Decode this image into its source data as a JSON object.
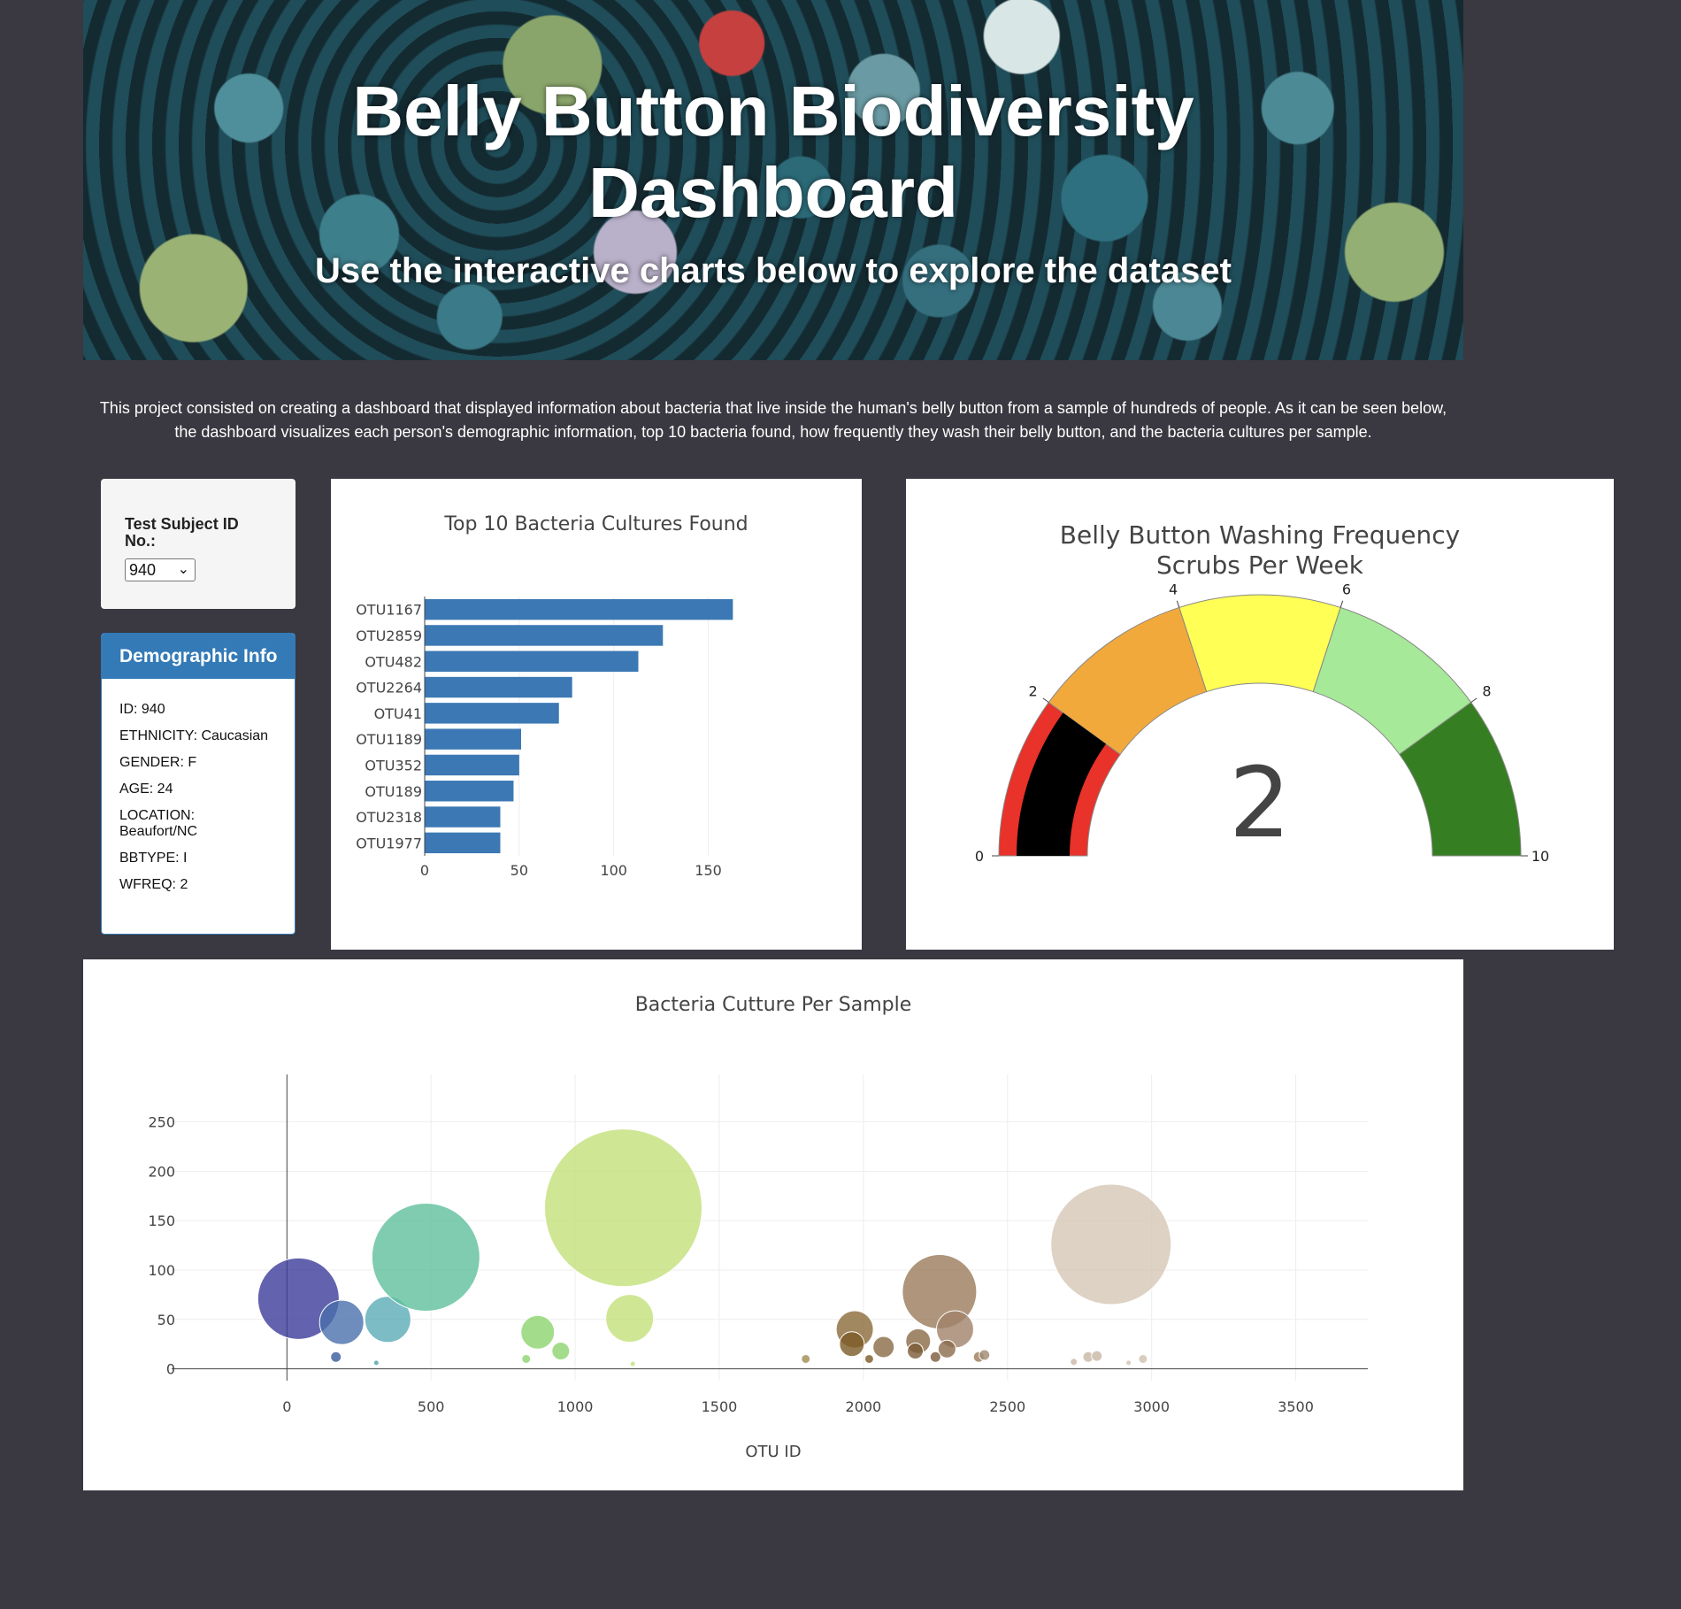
{
  "header": {
    "title_line1": "Belly Button Biodiversity",
    "title_line2": "Dashboard",
    "subtitle": "Use the interactive charts below to explore the dataset"
  },
  "intro": {
    "text": "This project consisted on creating a dashboard that displayed information about bacteria that live inside the human's belly button from a sample of hundreds of people. As it can be seen below, the dashboard visualizes each person's demographic information, top 10 bacteria found, how frequently they wash their belly button, and the bacteria cultures per sample."
  },
  "selector": {
    "label": "Test Subject ID No.:",
    "selected": "940"
  },
  "demographics": {
    "title": "Demographic Info",
    "rows": [
      "ID: 940",
      "ETHNICITY: Caucasian",
      "GENDER: F",
      "AGE: 24",
      "LOCATION: Beaufort/NC",
      "BBTYPE: I",
      "WFREQ: 2"
    ]
  },
  "colors": {
    "background": "#3a3840",
    "bar": "#3c78b4",
    "panel_accent": "#337ab7"
  },
  "chart_data": [
    {
      "type": "bar",
      "orientation": "horizontal",
      "title": "Top 10 Bacteria Cultures Found",
      "categories": [
        "OTU1167",
        "OTU2859",
        "OTU482",
        "OTU2264",
        "OTU41",
        "OTU1189",
        "OTU352",
        "OTU189",
        "OTU2318",
        "OTU1977"
      ],
      "values": [
        163,
        126,
        113,
        78,
        71,
        51,
        50,
        47,
        40,
        40
      ],
      "xlim": [
        0,
        175
      ],
      "xticks": [
        0,
        50,
        100,
        150
      ],
      "grid": true
    },
    {
      "type": "gauge",
      "title_line1": "Belly Button Washing Frequency",
      "title_line2": "Scrubs Per Week",
      "value": 2,
      "range": [
        0,
        10
      ],
      "ticks": [
        0,
        2,
        4,
        6,
        8,
        10
      ],
      "steps": [
        {
          "from": 0,
          "to": 2,
          "color": "#e8322a"
        },
        {
          "from": 2,
          "to": 4,
          "color": "#f2a93b"
        },
        {
          "from": 4,
          "to": 6,
          "color": "#ffff55"
        },
        {
          "from": 6,
          "to": 8,
          "color": "#a6e998"
        },
        {
          "from": 8,
          "to": 10,
          "color": "#367e22"
        }
      ],
      "bar_color": "#000000"
    },
    {
      "type": "scatter",
      "title": "Bacteria Cutture Per Sample",
      "xlabel": "OTU ID",
      "ylabel": "",
      "xlim": [
        -400,
        3750
      ],
      "ylim": [
        -12,
        298
      ],
      "xticks": [
        0,
        500,
        1000,
        1500,
        2000,
        2500,
        3000,
        3500
      ],
      "yticks": [
        0,
        50,
        100,
        150,
        200,
        250
      ],
      "grid": true,
      "points": [
        {
          "x": 40,
          "y": 71,
          "r": 46,
          "color": "#3b3b9a"
        },
        {
          "x": 190,
          "y": 47,
          "r": 25,
          "color": "#4a6fab"
        },
        {
          "x": 170,
          "y": 12,
          "r": 6,
          "color": "#3a5a9e"
        },
        {
          "x": 350,
          "y": 50,
          "r": 26,
          "color": "#5aabb7"
        },
        {
          "x": 310,
          "y": 6,
          "r": 3,
          "color": "#4f9fae"
        },
        {
          "x": 482,
          "y": 113,
          "r": 61,
          "color": "#5fbf9c"
        },
        {
          "x": 870,
          "y": 37,
          "r": 19,
          "color": "#8cd46e"
        },
        {
          "x": 830,
          "y": 10,
          "r": 5,
          "color": "#8cd46e"
        },
        {
          "x": 950,
          "y": 18,
          "r": 10,
          "color": "#8cd46e"
        },
        {
          "x": 1167,
          "y": 163,
          "r": 89,
          "color": "#c3e07a"
        },
        {
          "x": 1189,
          "y": 51,
          "r": 27,
          "color": "#c3e07a"
        },
        {
          "x": 1200,
          "y": 5,
          "r": 3,
          "color": "#c3e07a"
        },
        {
          "x": 1800,
          "y": 10,
          "r": 5,
          "color": "#a08c50"
        },
        {
          "x": 1970,
          "y": 40,
          "r": 21,
          "color": "#8a6a3a"
        },
        {
          "x": 1960,
          "y": 25,
          "r": 14,
          "color": "#7a5a25"
        },
        {
          "x": 2020,
          "y": 10,
          "r": 5,
          "color": "#7a5a25"
        },
        {
          "x": 2070,
          "y": 22,
          "r": 12,
          "color": "#8a6a45"
        },
        {
          "x": 2190,
          "y": 28,
          "r": 14,
          "color": "#8a6a45"
        },
        {
          "x": 2180,
          "y": 18,
          "r": 9,
          "color": "#7a5a35"
        },
        {
          "x": 2264,
          "y": 78,
          "r": 42,
          "color": "#9a7a5a"
        },
        {
          "x": 2318,
          "y": 40,
          "r": 21,
          "color": "#a0826a"
        },
        {
          "x": 2290,
          "y": 20,
          "r": 10,
          "color": "#8a6a4a"
        },
        {
          "x": 2250,
          "y": 12,
          "r": 6,
          "color": "#7a5a3a"
        },
        {
          "x": 2400,
          "y": 12,
          "r": 6,
          "color": "#9a7a5a"
        },
        {
          "x": 2420,
          "y": 14,
          "r": 6,
          "color": "#a08a70"
        },
        {
          "x": 2859,
          "y": 126,
          "r": 68,
          "color": "#d5c7b5"
        },
        {
          "x": 2780,
          "y": 12,
          "r": 6,
          "color": "#c8b8a5"
        },
        {
          "x": 2810,
          "y": 13,
          "r": 6,
          "color": "#c8b8a5"
        },
        {
          "x": 2730,
          "y": 7,
          "r": 4,
          "color": "#c8b8a5"
        },
        {
          "x": 2970,
          "y": 10,
          "r": 5,
          "color": "#d0c0ae"
        },
        {
          "x": 2920,
          "y": 6,
          "r": 3,
          "color": "#d0c0ae"
        }
      ]
    }
  ]
}
